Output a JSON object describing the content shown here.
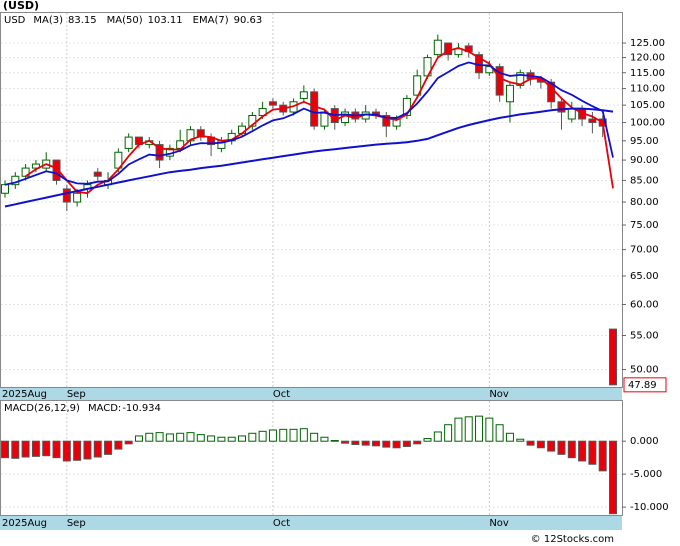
{
  "chart_data": [
    {
      "type": "candlestick",
      "title": "(USD)",
      "symbol": "USD",
      "categories": [
        "2025Aug",
        null,
        null,
        null,
        null,
        null,
        "Sep",
        null,
        null,
        null,
        null,
        null,
        null,
        null,
        null,
        null,
        null,
        null,
        null,
        null,
        null,
        null,
        null,
        null,
        null,
        null,
        "Oct",
        null,
        null,
        null,
        null,
        null,
        null,
        null,
        null,
        null,
        null,
        null,
        null,
        null,
        null,
        null,
        null,
        null,
        null,
        null,
        null,
        "Nov",
        null,
        null,
        null,
        null,
        null,
        null,
        null,
        null,
        null,
        null,
        null,
        null
      ],
      "open": [
        82,
        84,
        86,
        88,
        88,
        90,
        83,
        80,
        83,
        87,
        84,
        88,
        93,
        96,
        94,
        94,
        91,
        93,
        95,
        98,
        96,
        93,
        95,
        97,
        99,
        102,
        106,
        105,
        103,
        107,
        109,
        99,
        104,
        100,
        103,
        101,
        103,
        102,
        99,
        102,
        108,
        114,
        121,
        125,
        121,
        124,
        121,
        115,
        117,
        106,
        111,
        115,
        113,
        112,
        106,
        101,
        104,
        101,
        101,
        56
      ],
      "high": [
        85,
        87,
        89,
        90,
        92,
        90,
        84,
        83,
        85,
        88,
        87,
        93,
        97,
        96,
        96,
        95,
        94,
        98,
        99,
        99,
        97,
        96,
        98,
        100,
        103,
        106,
        107,
        106,
        107,
        111,
        110,
        104,
        105,
        104,
        104,
        105,
        104,
        103,
        102,
        108,
        116,
        121,
        128,
        125,
        125,
        125,
        122,
        119,
        118,
        112,
        116,
        116,
        114,
        113,
        107,
        106,
        105,
        103,
        102,
        56
      ],
      "low": [
        81,
        83,
        85,
        87,
        87,
        84,
        78,
        79,
        81,
        85,
        83,
        87,
        92,
        93,
        93,
        88,
        90,
        92,
        94,
        95,
        91,
        92,
        94,
        96,
        98,
        101,
        104,
        102,
        102,
        106,
        98,
        98,
        98,
        99,
        100,
        100,
        101,
        96,
        98,
        101,
        107,
        113,
        120,
        119,
        120,
        120,
        113,
        114,
        106,
        100,
        110,
        111,
        110,
        104,
        98,
        100,
        99,
        97,
        96,
        47.89
      ],
      "close": [
        84,
        86,
        88,
        89,
        90,
        85,
        80,
        82,
        84,
        86,
        85,
        92,
        96,
        94,
        95,
        90,
        93,
        95,
        98,
        96,
        94,
        95,
        97,
        99,
        102,
        104,
        105,
        103,
        106,
        109,
        99,
        103,
        100,
        103,
        101,
        103,
        102,
        99,
        101,
        107,
        114,
        120,
        126,
        121,
        123,
        122,
        115,
        117,
        108,
        111,
        115,
        113,
        112,
        106,
        103,
        104,
        101,
        100,
        99,
        47.89
      ],
      "up_color": "#006400",
      "down_color": "#e8000b",
      "series": [
        {
          "name": "MA(3)",
          "color": "#e8000b",
          "last": 83.15,
          "values": [
            null,
            null,
            86,
            87.7,
            89,
            88,
            85,
            82.3,
            82,
            84,
            85,
            87.7,
            91,
            94,
            95,
            93,
            92.7,
            92.7,
            95.3,
            96.3,
            96,
            95,
            95.3,
            97,
            99.3,
            101.7,
            103.7,
            104,
            104.7,
            106,
            104.7,
            103.7,
            100.7,
            102,
            101.3,
            102.3,
            102,
            101.3,
            100.7,
            102.3,
            107.3,
            113.7,
            120,
            122.3,
            123.3,
            122,
            120,
            118,
            113.3,
            112,
            111.3,
            113,
            113.3,
            110.3,
            107,
            104.3,
            102.7,
            101.7,
            100,
            83.15
          ]
        },
        {
          "name": "MA(50)",
          "color": "#1010d0",
          "last": 103.11,
          "values": [
            79,
            79.5,
            80,
            80.5,
            81,
            81.5,
            82,
            82.5,
            83,
            83.5,
            84,
            84.5,
            85,
            85.5,
            86,
            86.5,
            87,
            87.3,
            87.6,
            88,
            88.3,
            88.6,
            89,
            89.4,
            89.8,
            90.2,
            90.6,
            91,
            91.4,
            91.8,
            92.2,
            92.5,
            92.8,
            93.1,
            93.4,
            93.7,
            94,
            94.2,
            94.4,
            94.6,
            95,
            95.5,
            96.5,
            97.5,
            98.5,
            99.3,
            100,
            100.7,
            101.3,
            101.8,
            102.3,
            102.7,
            103.1,
            103.5,
            103.8,
            104,
            104,
            103.8,
            103.5,
            103.11
          ]
        },
        {
          "name": "EMA(7)",
          "color": "#1010d0",
          "last": 90.63,
          "values": [
            84,
            84.5,
            85.4,
            86.3,
            87.2,
            86.7,
            85,
            84.3,
            84.2,
            84.7,
            84.8,
            86.6,
            88.9,
            90.2,
            91.4,
            91.1,
            91.6,
            92.4,
            93.8,
            94.4,
            94.3,
            94.5,
            95.1,
            96.1,
            97.6,
            99.2,
            100.6,
            101.2,
            102.4,
            104,
            102.8,
            102.8,
            102.1,
            102.3,
            102,
            102.3,
            102.2,
            101.4,
            101.3,
            102.7,
            105.5,
            109.1,
            113.3,
            115.2,
            117.2,
            118.4,
            117.5,
            117.4,
            115,
            114,
            114.3,
            114,
            113.5,
            111.6,
            109.5,
            108.1,
            106.3,
            104.7,
            103.3,
            90.63
          ]
        }
      ],
      "last_price": 47.89,
      "log_scale": true,
      "grid": true,
      "ylim": [
        47.6,
        136
      ],
      "yticks": [
        {
          "value": 50,
          "label": "50.00"
        },
        {
          "value": 55,
          "label": "55.00"
        },
        {
          "value": 60,
          "label": "60.00"
        },
        {
          "value": 65,
          "label": "65.00"
        },
        {
          "value": 70,
          "label": "70.00"
        },
        {
          "value": 75,
          "label": "75.00"
        },
        {
          "value": 80,
          "label": "80.00"
        },
        {
          "value": 85,
          "label": "85.00"
        },
        {
          "value": 90,
          "label": "90.00"
        },
        {
          "value": 95,
          "label": "95.00"
        },
        {
          "value": 100,
          "label": "100.00"
        },
        {
          "value": 105,
          "label": "105.00"
        },
        {
          "value": 110,
          "label": "110.00"
        },
        {
          "value": 115,
          "label": "115.00"
        },
        {
          "value": 120,
          "label": "120.00"
        },
        {
          "value": 125,
          "label": "125.00"
        }
      ]
    },
    {
      "type": "bar",
      "title": "MACD(26,12,9)",
      "value_name": "MACD:",
      "value": -10.934,
      "values": [
        -2.5,
        -2.6,
        -2.4,
        -2.3,
        -2.2,
        -2.5,
        -3.0,
        -2.9,
        -2.7,
        -2.4,
        -2.0,
        -1.2,
        -0.4,
        0.8,
        1.2,
        1.3,
        1.1,
        1.2,
        1.3,
        1.0,
        0.8,
        0.6,
        0.6,
        0.8,
        1.2,
        1.5,
        1.7,
        1.8,
        1.8,
        1.9,
        1.2,
        0.6,
        0.1,
        -0.3,
        -0.5,
        -0.6,
        -0.7,
        -0.9,
        -1.0,
        -0.8,
        -0.4,
        0.4,
        1.4,
        2.5,
        3.5,
        3.7,
        3.8,
        3.5,
        2.5,
        1.2,
        0.3,
        -0.6,
        -1.0,
        -1.5,
        -2.0,
        -2.5,
        -3.0,
        -3.5,
        -4.5,
        -11.0
      ],
      "up_color": "#006400",
      "down_color": "#e8000b",
      "grid": true,
      "ylim": [
        -11.2,
        6.1
      ],
      "yticks": [
        {
          "value": -10,
          "label": "-10.000"
        },
        {
          "value": -5,
          "label": "-5.000"
        },
        {
          "value": 0,
          "label": "0.000"
        }
      ]
    }
  ],
  "footer": "© 12Stocks.com"
}
